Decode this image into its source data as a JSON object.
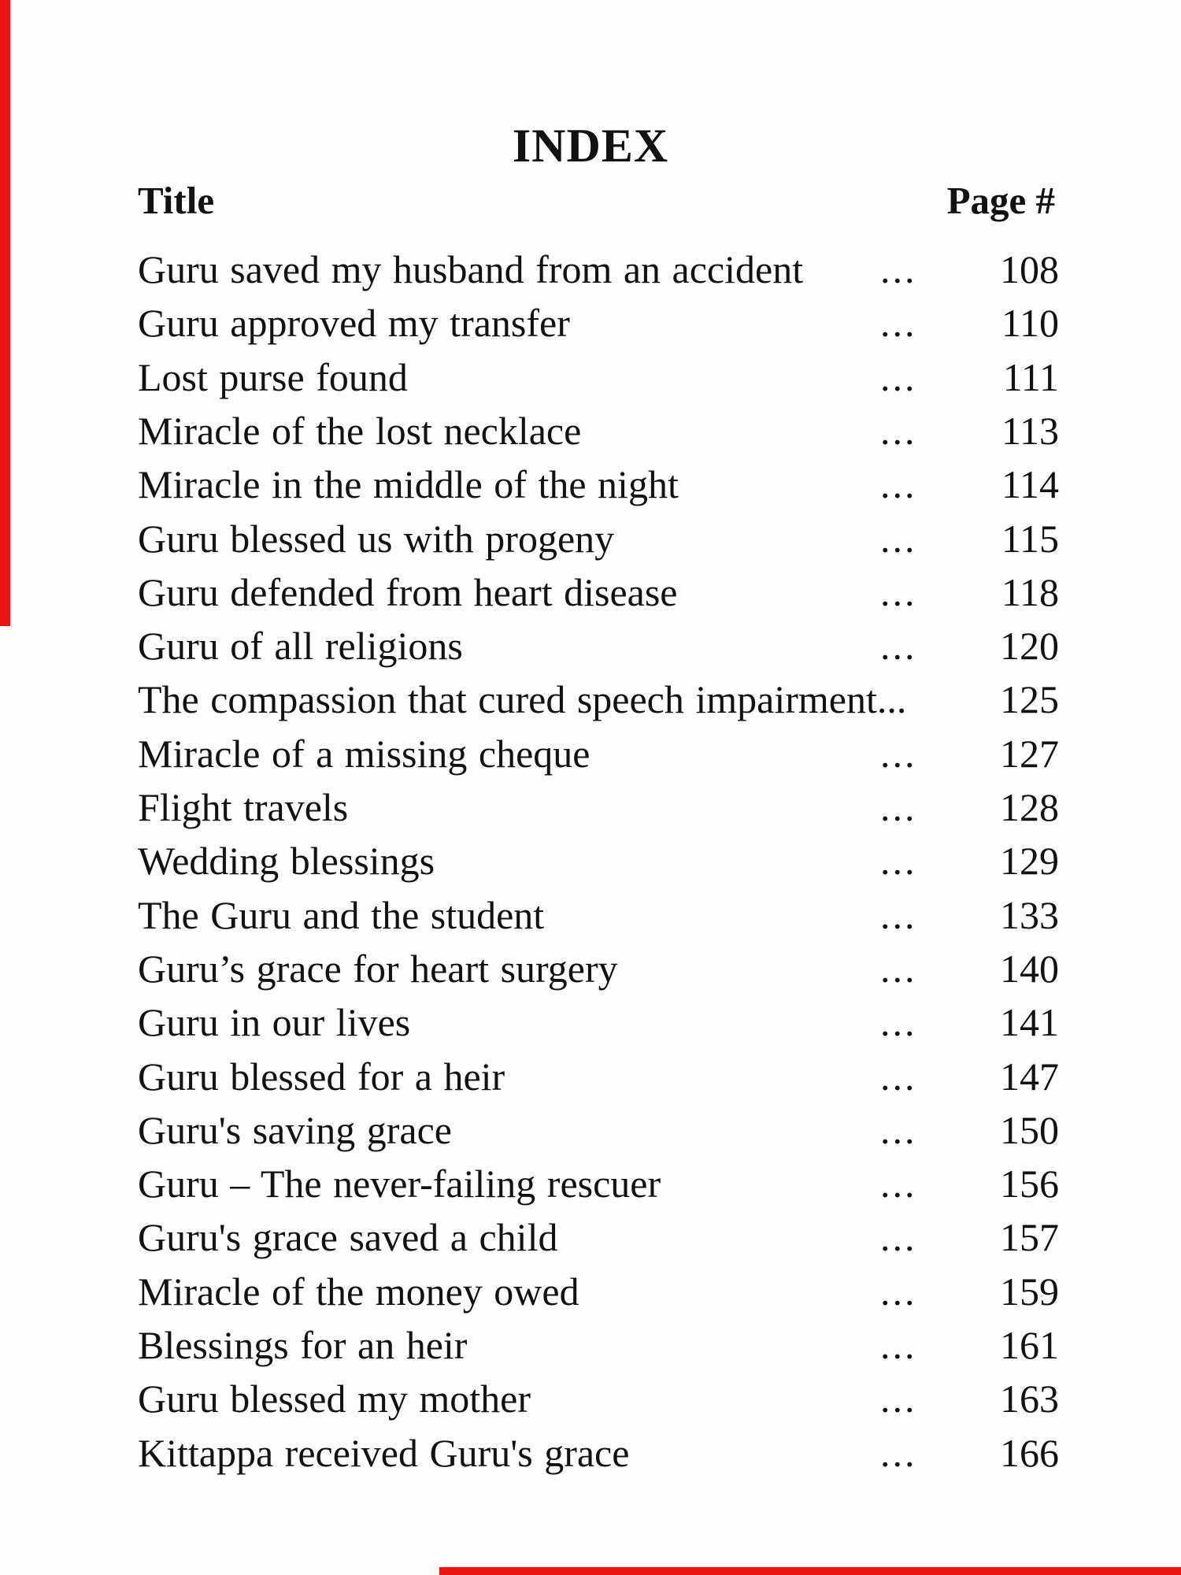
{
  "document": {
    "title": "INDEX",
    "columns": {
      "title_header": "Title",
      "page_header": "Page #"
    }
  },
  "entries": [
    {
      "title": "Guru saved my husband from an accident",
      "dots": "...",
      "page": "108"
    },
    {
      "title": "Guru approved my transfer",
      "dots": "...",
      "page": "110"
    },
    {
      "title": "Lost purse found",
      "dots": "...",
      "page": "111"
    },
    {
      "title": "Miracle of the lost necklace",
      "dots": "...",
      "page": "113"
    },
    {
      "title": "Miracle in the middle of the night",
      "dots": "...",
      "page": "114"
    },
    {
      "title": "Guru blessed us with progeny",
      "dots": "...",
      "page": "115"
    },
    {
      "title": "Guru defended from heart disease",
      "dots": "...",
      "page": "118"
    },
    {
      "title": "Guru of all religions",
      "dots": "...",
      "page": "120"
    },
    {
      "title": "The compassion that cured speech impairment...",
      "dots": "",
      "page": "125"
    },
    {
      "title": "Miracle of a missing cheque",
      "dots": "...",
      "page": "127"
    },
    {
      "title": "Flight travels",
      "dots": "...",
      "page": "128"
    },
    {
      "title": "Wedding blessings",
      "dots": "...",
      "page": "129"
    },
    {
      "title": "The Guru and the student",
      "dots": "...",
      "page": "133"
    },
    {
      "title": "Guru’s grace for heart surgery",
      "dots": "...",
      "page": "140"
    },
    {
      "title": "Guru in our lives",
      "dots": "...",
      "page": "141"
    },
    {
      "title": "Guru blessed for a heir",
      "dots": "...",
      "page": "147"
    },
    {
      "title": "Guru's saving grace",
      "dots": "...",
      "page": "150"
    },
    {
      "title": "Guru – The never-failing rescuer",
      "dots": "...",
      "page": "156"
    },
    {
      "title": "Guru's grace saved a child",
      "dots": "...",
      "page": "157"
    },
    {
      "title": "Miracle of the money owed",
      "dots": "...",
      "page": "159"
    },
    {
      "title": "Blessings for an heir",
      "dots": "...",
      "page": "161"
    },
    {
      "title": "Guru blessed my mother",
      "dots": "...",
      "page": "163"
    },
    {
      "title": "Kittappa received Guru's grace",
      "dots": "...",
      "page": "166"
    }
  ],
  "colors": {
    "paper": "#fefefe",
    "ink": "#121212",
    "edge_mark_red": "#ec1412"
  }
}
